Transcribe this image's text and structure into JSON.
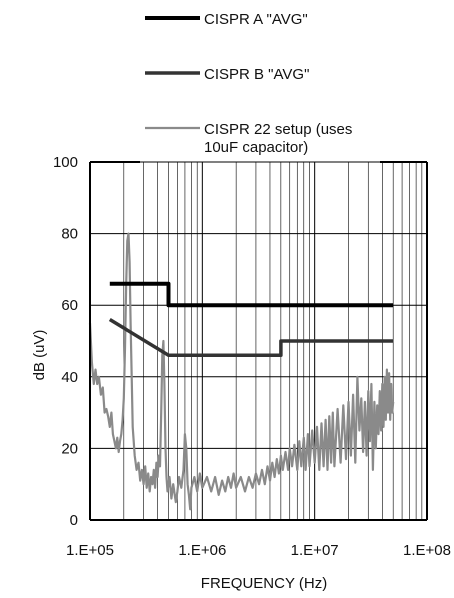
{
  "chart_data": {
    "type": "line",
    "title": "",
    "xlabel": "FREQUENCY (Hz)",
    "ylabel": "dB (uV)",
    "x_scale": "log",
    "xlim": [
      100000,
      100000000
    ],
    "ylim": [
      0,
      100
    ],
    "x_ticks": [
      100000,
      1000000,
      10000000,
      100000000
    ],
    "x_tick_labels": [
      "1.E+05",
      "1.E+06",
      "1.E+07",
      "1.E+08"
    ],
    "y_ticks": [
      0,
      20,
      40,
      60,
      80,
      100
    ],
    "y_tick_labels": [
      "0",
      "20",
      "40",
      "60",
      "80",
      "100"
    ],
    "grid": true,
    "legend_position": "top",
    "series": [
      {
        "name": "CISPR A \"AVG\"",
        "color": "#000000",
        "points": [
          [
            150000,
            66
          ],
          [
            500000,
            66
          ],
          [
            500000,
            60
          ],
          [
            50000000,
            60
          ]
        ]
      },
      {
        "name": "CISPR B \"AVG\"",
        "color": "#333333",
        "points": [
          [
            150000,
            56
          ],
          [
            500000,
            46
          ],
          [
            5000000,
            46
          ],
          [
            5000000,
            50
          ],
          [
            50000000,
            50
          ]
        ]
      },
      {
        "name": "CISPR 22 setup (uses 10uF capacitor)",
        "color": "#8a8a8a",
        "points": [
          [
            100000,
            55
          ],
          [
            104000,
            44
          ],
          [
            108000,
            38
          ],
          [
            112000,
            42
          ],
          [
            116000,
            38
          ],
          [
            120000,
            40
          ],
          [
            125000,
            35
          ],
          [
            130000,
            37
          ],
          [
            135000,
            30
          ],
          [
            140000,
            31
          ],
          [
            145000,
            29
          ],
          [
            150000,
            26
          ],
          [
            155000,
            30
          ],
          [
            160000,
            24
          ],
          [
            165000,
            22
          ],
          [
            170000,
            20
          ],
          [
            175000,
            23
          ],
          [
            180000,
            19
          ],
          [
            185000,
            22
          ],
          [
            190000,
            24
          ],
          [
            195000,
            28
          ],
          [
            200000,
            34
          ],
          [
            205000,
            48
          ],
          [
            210000,
            66
          ],
          [
            215000,
            78
          ],
          [
            220000,
            80
          ],
          [
            225000,
            72
          ],
          [
            230000,
            55
          ],
          [
            235000,
            40
          ],
          [
            240000,
            26
          ],
          [
            250000,
            18
          ],
          [
            260000,
            14
          ],
          [
            270000,
            16
          ],
          [
            280000,
            11
          ],
          [
            290000,
            14
          ],
          [
            300000,
            10
          ],
          [
            310000,
            15
          ],
          [
            320000,
            9
          ],
          [
            330000,
            13
          ],
          [
            340000,
            8
          ],
          [
            350000,
            12
          ],
          [
            360000,
            10
          ],
          [
            370000,
            14
          ],
          [
            380000,
            9
          ],
          [
            390000,
            16
          ],
          [
            400000,
            12
          ],
          [
            410000,
            18
          ],
          [
            420000,
            15
          ],
          [
            430000,
            30
          ],
          [
            440000,
            46
          ],
          [
            450000,
            50
          ],
          [
            460000,
            38
          ],
          [
            470000,
            20
          ],
          [
            480000,
            12
          ],
          [
            490000,
            8
          ],
          [
            510000,
            12
          ],
          [
            530000,
            6
          ],
          [
            550000,
            10
          ],
          [
            580000,
            5
          ],
          [
            600000,
            8
          ],
          [
            620000,
            12
          ],
          [
            650000,
            9
          ],
          [
            680000,
            14
          ],
          [
            700000,
            24
          ],
          [
            720000,
            20
          ],
          [
            740000,
            10
          ],
          [
            760000,
            7
          ],
          [
            780000,
            3
          ],
          [
            800000,
            9
          ],
          [
            850000,
            12
          ],
          [
            900000,
            8
          ],
          [
            950000,
            13
          ],
          [
            1000000,
            9
          ],
          [
            1100000,
            12
          ],
          [
            1200000,
            8
          ],
          [
            1300000,
            12
          ],
          [
            1400000,
            7
          ],
          [
            1500000,
            11
          ],
          [
            1600000,
            8
          ],
          [
            1700000,
            12
          ],
          [
            1800000,
            9
          ],
          [
            1900000,
            13
          ],
          [
            2000000,
            9
          ],
          [
            2200000,
            12
          ],
          [
            2400000,
            8
          ],
          [
            2600000,
            12
          ],
          [
            2800000,
            9
          ],
          [
            3000000,
            13
          ],
          [
            3200000,
            10
          ],
          [
            3400000,
            14
          ],
          [
            3600000,
            10
          ],
          [
            3800000,
            15
          ],
          [
            4000000,
            11
          ],
          [
            4200000,
            16
          ],
          [
            4400000,
            12
          ],
          [
            4600000,
            17
          ],
          [
            4800000,
            13
          ],
          [
            5000000,
            18
          ],
          [
            5200000,
            14
          ],
          [
            5500000,
            19
          ],
          [
            5800000,
            14
          ],
          [
            6000000,
            20
          ],
          [
            6300000,
            15
          ],
          [
            6600000,
            21
          ],
          [
            7000000,
            14
          ],
          [
            7300000,
            22
          ],
          [
            7600000,
            15
          ],
          [
            8000000,
            23
          ],
          [
            8300000,
            14
          ],
          [
            8700000,
            24
          ],
          [
            9000000,
            15
          ],
          [
            9500000,
            25
          ],
          [
            10000000,
            16
          ],
          [
            10500000,
            26
          ],
          [
            11000000,
            14
          ],
          [
            11500000,
            27
          ],
          [
            12000000,
            15
          ],
          [
            12500000,
            28
          ],
          [
            13000000,
            14
          ],
          [
            13500000,
            29
          ],
          [
            14000000,
            16
          ],
          [
            14500000,
            30
          ],
          [
            15000000,
            15
          ],
          [
            16000000,
            31
          ],
          [
            17000000,
            16
          ],
          [
            18000000,
            32
          ],
          [
            19000000,
            17
          ],
          [
            20000000,
            33
          ],
          [
            21000000,
            18
          ],
          [
            22000000,
            35
          ],
          [
            23000000,
            16
          ],
          [
            24000000,
            40
          ],
          [
            25000000,
            25
          ],
          [
            26000000,
            34
          ],
          [
            27000000,
            19
          ],
          [
            28000000,
            33
          ],
          [
            29000000,
            18
          ],
          [
            30000000,
            36
          ],
          [
            31000000,
            22
          ],
          [
            32000000,
            38
          ],
          [
            33000000,
            14
          ],
          [
            34000000,
            33
          ],
          [
            35000000,
            20
          ],
          [
            36000000,
            32
          ],
          [
            37000000,
            24
          ],
          [
            38000000,
            36
          ],
          [
            39000000,
            25
          ],
          [
            40000000,
            38
          ],
          [
            41000000,
            26
          ],
          [
            42000000,
            40
          ],
          [
            43000000,
            28
          ],
          [
            44000000,
            42
          ],
          [
            45000000,
            30
          ],
          [
            46000000,
            41
          ],
          [
            47000000,
            28
          ],
          [
            48000000,
            38
          ],
          [
            49000000,
            30
          ],
          [
            50000000,
            33
          ]
        ]
      }
    ]
  }
}
